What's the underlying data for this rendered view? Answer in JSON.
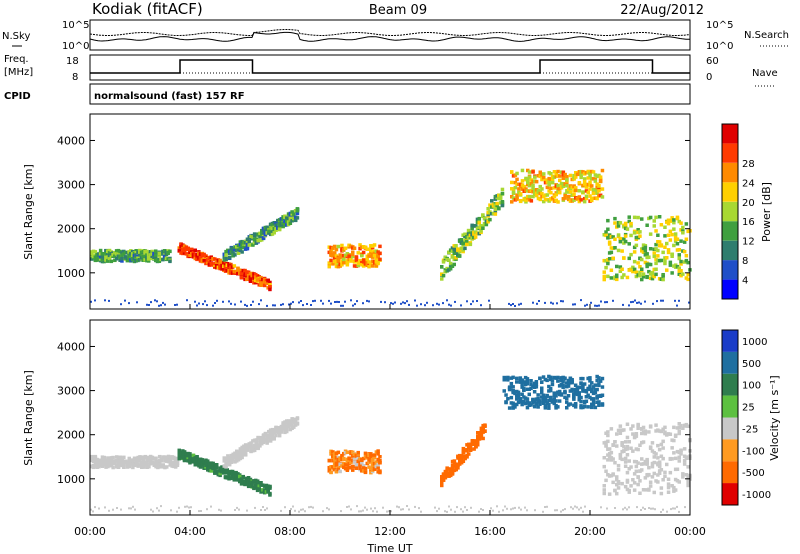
{
  "header": {
    "station": "Kodiak (fitACF)",
    "beam": "Beam 09",
    "date": "22/Aug/2012"
  },
  "summary_panels": {
    "nsky_label": "N.Sky",
    "nsearch_label": "N.Search",
    "noise_ticks": [
      "10^5",
      "10^0"
    ],
    "freq_label_line1": "Freq.",
    "freq_label_line2": "[MHz]",
    "freq_ticks": [
      "18",
      "8"
    ],
    "nave_label": "Nave",
    "nave_ticks": [
      "60",
      "0"
    ],
    "cpid_label": "CPID",
    "cpid_text": "normalsound (fast) 157 RF"
  },
  "chart_data": [
    {
      "type": "heatmap",
      "title": "Power",
      "ylabel": "Slant Range [km]",
      "xlabel": "",
      "x_ticks": [
        "00:00",
        "04:00",
        "08:00",
        "12:00",
        "16:00",
        "20:00",
        "00:00"
      ],
      "y_ticks": [
        "1000",
        "2000",
        "3000",
        "4000"
      ],
      "ylim": [
        180,
        4600
      ],
      "xlim_hours": [
        0,
        24
      ],
      "colorbar_label": "Power [dB]",
      "colorbar_ticks": [
        "4",
        "8",
        "12",
        "16",
        "20",
        "24",
        "28"
      ],
      "colorbar_colors": [
        "#0000ff",
        "#1f4fc8",
        "#2f7d6e",
        "#3f9f3f",
        "#a8d832",
        "#ffd000",
        "#ff8a00",
        "#ff3a00",
        "#e00000"
      ],
      "features": [
        {
          "name": "early band",
          "t0": 0.0,
          "t1": 3.2,
          "r0": 1280,
          "r1": 1560,
          "level": 10
        },
        {
          "name": "descending echo",
          "t0": 3.5,
          "t1": 7.2,
          "r0": 750,
          "r1": 1600,
          "level": 24
        },
        {
          "name": "ascending arc",
          "t0": 5.3,
          "t1": 8.3,
          "r0": 1400,
          "r1": 2400,
          "level": 9
        },
        {
          "name": "midday patch",
          "t0": 9.5,
          "t1": 11.6,
          "r0": 1150,
          "r1": 1700,
          "level": 20
        },
        {
          "name": "afternoon arc",
          "t0": 14.0,
          "t1": 16.5,
          "r0": 1100,
          "r1": 2800,
          "level": 12
        },
        {
          "name": "far range cloud",
          "t0": 16.8,
          "t1": 20.5,
          "r0": 2600,
          "r1": 3400,
          "level": 18
        },
        {
          "name": "evening columns",
          "t0": 20.5,
          "t1": 24.0,
          "r0": 800,
          "r1": 2400,
          "level": 14
        }
      ]
    },
    {
      "type": "heatmap",
      "title": "Velocity",
      "ylabel": "Slant Range [km]",
      "xlabel": "Time UT",
      "x_ticks": [
        "00:00",
        "04:00",
        "08:00",
        "12:00",
        "16:00",
        "20:00",
        "00:00"
      ],
      "y_ticks": [
        "1000",
        "2000",
        "3000",
        "4000"
      ],
      "ylim": [
        180,
        4600
      ],
      "xlim_hours": [
        0,
        24
      ],
      "colorbar_label": "Velocity [m s⁻¹]",
      "colorbar_ticks": [
        "1000",
        "500",
        "100",
        "25",
        "-25",
        "-100",
        "-500",
        "-1000"
      ],
      "colorbar_colors": [
        "#1a3cc8",
        "#1f6fa0",
        "#2f7d4e",
        "#5dc040",
        "#c8c8c8",
        "#ff9a20",
        "#ff6a00",
        "#e00000"
      ],
      "features": [
        {
          "name": "ground scatter band",
          "t0": 0.0,
          "t1": 3.5,
          "r0": 1280,
          "r1": 1560,
          "velocity": 0
        },
        {
          "name": "negative slant green",
          "t0": 3.5,
          "t1": 7.2,
          "r0": 750,
          "r1": 1600,
          "velocity": 150
        },
        {
          "name": "gray arc",
          "t0": 5.3,
          "t1": 8.3,
          "r0": 1400,
          "r1": 2400,
          "velocity": 0
        },
        {
          "name": "midday mixed",
          "t0": 9.5,
          "t1": 11.6,
          "r0": 1150,
          "r1": 1700,
          "velocity": -100
        },
        {
          "name": "afternoon orange",
          "t0": 14.0,
          "t1": 15.8,
          "r0": 1000,
          "r1": 2200,
          "velocity": -400
        },
        {
          "name": "far range green-blue",
          "t0": 16.5,
          "t1": 20.5,
          "r0": 2600,
          "r1": 3400,
          "velocity": 400
        },
        {
          "name": "evening gray",
          "t0": 20.5,
          "t1": 24.0,
          "r0": 600,
          "r1": 2400,
          "velocity": 0
        }
      ]
    }
  ]
}
